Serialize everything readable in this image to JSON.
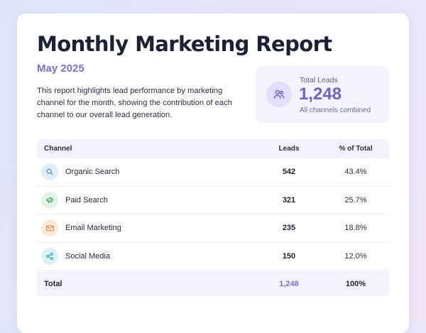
{
  "report": {
    "title": "Monthly Marketing Report",
    "date": "May 2025",
    "description": "This report highlights lead performance by marketing channel for the month, showing the contribution of each channel to our overall lead generation."
  },
  "summary": {
    "label": "Total Leads",
    "value": "1,248",
    "note": "All channels combined",
    "icon": "users-icon"
  },
  "table": {
    "headers": {
      "channel": "Channel",
      "leads": "Leads",
      "pct": "% of Total"
    },
    "rows": [
      {
        "channel": "Organic Search",
        "leads": "542",
        "pct": "43.4%",
        "icon": "search-icon",
        "icon_color": "#4a90c9",
        "icon_bg": "#e0edfa"
      },
      {
        "channel": "Paid Search",
        "leads": "321",
        "pct": "25.7%",
        "icon": "megaphone-icon",
        "icon_color": "#3f9a5a",
        "icon_bg": "#e1f3e6"
      },
      {
        "channel": "Email Marketing",
        "leads": "235",
        "pct": "18.8%",
        "icon": "mail-icon",
        "icon_color": "#e0925a",
        "icon_bg": "#fde9d8"
      },
      {
        "channel": "Social Media",
        "leads": "150",
        "pct": "12.0%",
        "icon": "share-icon",
        "icon_color": "#3aaab0",
        "icon_bg": "#dcf3f3"
      }
    ],
    "total": {
      "label": "Total",
      "leads": "1,248",
      "pct": "100%"
    }
  },
  "colors": {
    "accent": "#7b6fcf",
    "title": "#1c2133",
    "panel": "#f3f3fd"
  }
}
